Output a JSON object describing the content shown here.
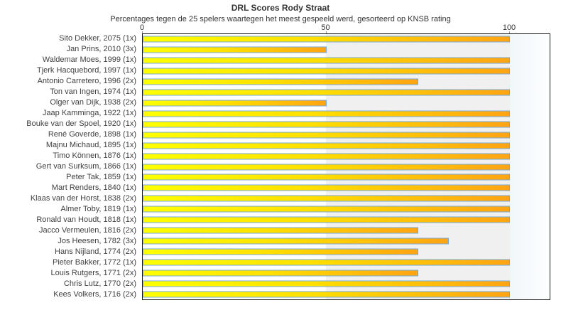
{
  "title": "DRL Scores Rody Straat",
  "subtitle": "Percentages tegen de 25 spelers waartegen het meest gespeeld werd, gesorteerd op KNSB rating",
  "chart_data": {
    "type": "bar",
    "orientation": "horizontal",
    "title": "DRL Scores Rody Straat",
    "subtitle": "Percentages tegen de 25 spelers waartegen het meest gespeeld werd, gesorteerd op KNSB rating",
    "xlabel": "",
    "ylabel": "",
    "xlim": [
      0,
      111
    ],
    "x_ticks": [
      0,
      50,
      100
    ],
    "grid": "vertical-bands",
    "legend": "none",
    "categories": [
      "Sito Dekker, 2075 (1x)",
      "Jan Prins, 2010 (3x)",
      "Waldemar Moes, 1999 (1x)",
      "Tjerk Hacquebord, 1997 (1x)",
      "Antonio Carretero, 1996 (2x)",
      "Ton van Ingen, 1974 (1x)",
      "Olger van Dijk, 1938 (2x)",
      "Jaap Kamminga, 1922 (1x)",
      "Bouke van der Spoel, 1920 (1x)",
      "René Goverde, 1898 (1x)",
      "Majnu Michaud, 1895 (1x)",
      "Timo Können, 1876 (1x)",
      "Gert van Surksum, 1866 (1x)",
      "Peter Tak, 1859 (1x)",
      "Mart Renders, 1840 (1x)",
      "Klaas van der Horst, 1838 (2x)",
      "Almer Toby, 1819 (1x)",
      "Ronald van Houdt, 1818 (1x)",
      "Jacco Vermeulen, 1816 (2x)",
      "Jos Heesen, 1782 (3x)",
      "Hans Nijland, 1774 (2x)",
      "Pieter Bakker, 1772 (1x)",
      "Louis Rutgers, 1771 (2x)",
      "Chris Lutz, 1770 (2x)",
      "Kees Volkers, 1716 (2x)"
    ],
    "values": [
      100,
      50,
      100,
      100,
      75,
      100,
      50,
      100,
      100,
      100,
      100,
      100,
      100,
      100,
      100,
      100,
      100,
      100,
      75,
      83.3,
      75,
      100,
      75,
      100,
      100
    ],
    "colors": {
      "bar_gradient_start": "#ffff00",
      "bar_gradient_end": "#ffa413",
      "bar_border": "#74aad9",
      "band_gray": "#f0f0f0",
      "plot_border": "#1a1a1a",
      "text": "#333333"
    }
  }
}
